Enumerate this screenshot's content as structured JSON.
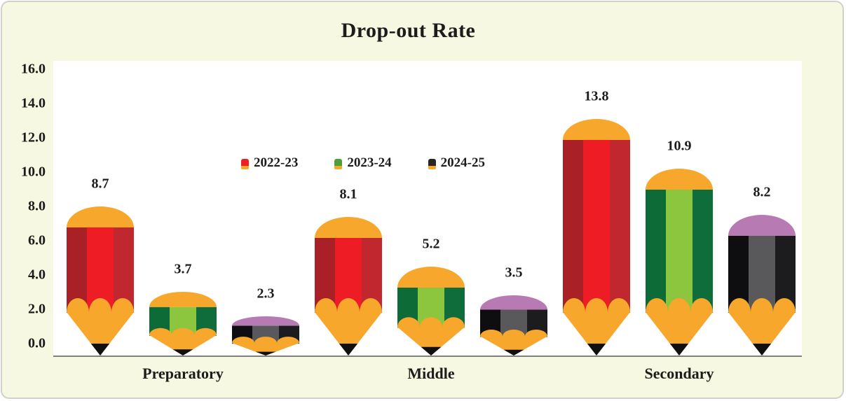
{
  "chart_data": {
    "type": "bar",
    "title": "Drop-out Rate",
    "categories": [
      "Preparatory",
      "Middle",
      "Secondary"
    ],
    "series": [
      {
        "name": "2022-23",
        "values": [
          8.7,
          8.1,
          13.8
        ],
        "colors": {
          "side_left": "#a92027",
          "center": "#ee1c25",
          "side_right": "#c0272e",
          "cap": "#f6a72c",
          "legend_marker": "#ed2125"
        }
      },
      {
        "name": "2023-24",
        "values": [
          3.7,
          5.2,
          10.9
        ],
        "colors": {
          "side_left": "#0d6b38",
          "center": "#8cc63e",
          "side_right": "#0e6d3a",
          "cap": "#f6a72c",
          "legend_marker": "#4f9f38"
        }
      },
      {
        "name": "2024-25",
        "values": [
          2.3,
          3.5,
          8.2
        ],
        "colors": {
          "side_left": "#0e0e10",
          "center": "#59595b",
          "side_right": "#1c1c1e",
          "cap": "#b87ab2",
          "legend_marker": "#262626"
        }
      }
    ],
    "value_labels": [
      [
        "8.7",
        "8.1",
        "13.8"
      ],
      [
        "3.7",
        "5.2",
        "10.9"
      ],
      [
        "2.3",
        "3.5",
        "8.2"
      ]
    ],
    "y_ticks": [
      "16.0",
      "14.0",
      "12.0",
      "10.0",
      "8.0",
      "6.0",
      "4.0",
      "2.0",
      "0.0"
    ],
    "ylim": [
      0,
      16
    ],
    "xlabel": "",
    "ylabel": "",
    "grid": false,
    "legend_position": "top-inside",
    "styling": {
      "card_background": "#f7f8e1",
      "card_border": "#d0d0cc",
      "plot_background": "#ffffff",
      "axis_line": "#7f7f7f",
      "text_color": "#1c1c1c",
      "wood_color": "#f6a72c",
      "lead_tip_color": "#101010",
      "legend_marker_base": "#f6a72c"
    }
  }
}
